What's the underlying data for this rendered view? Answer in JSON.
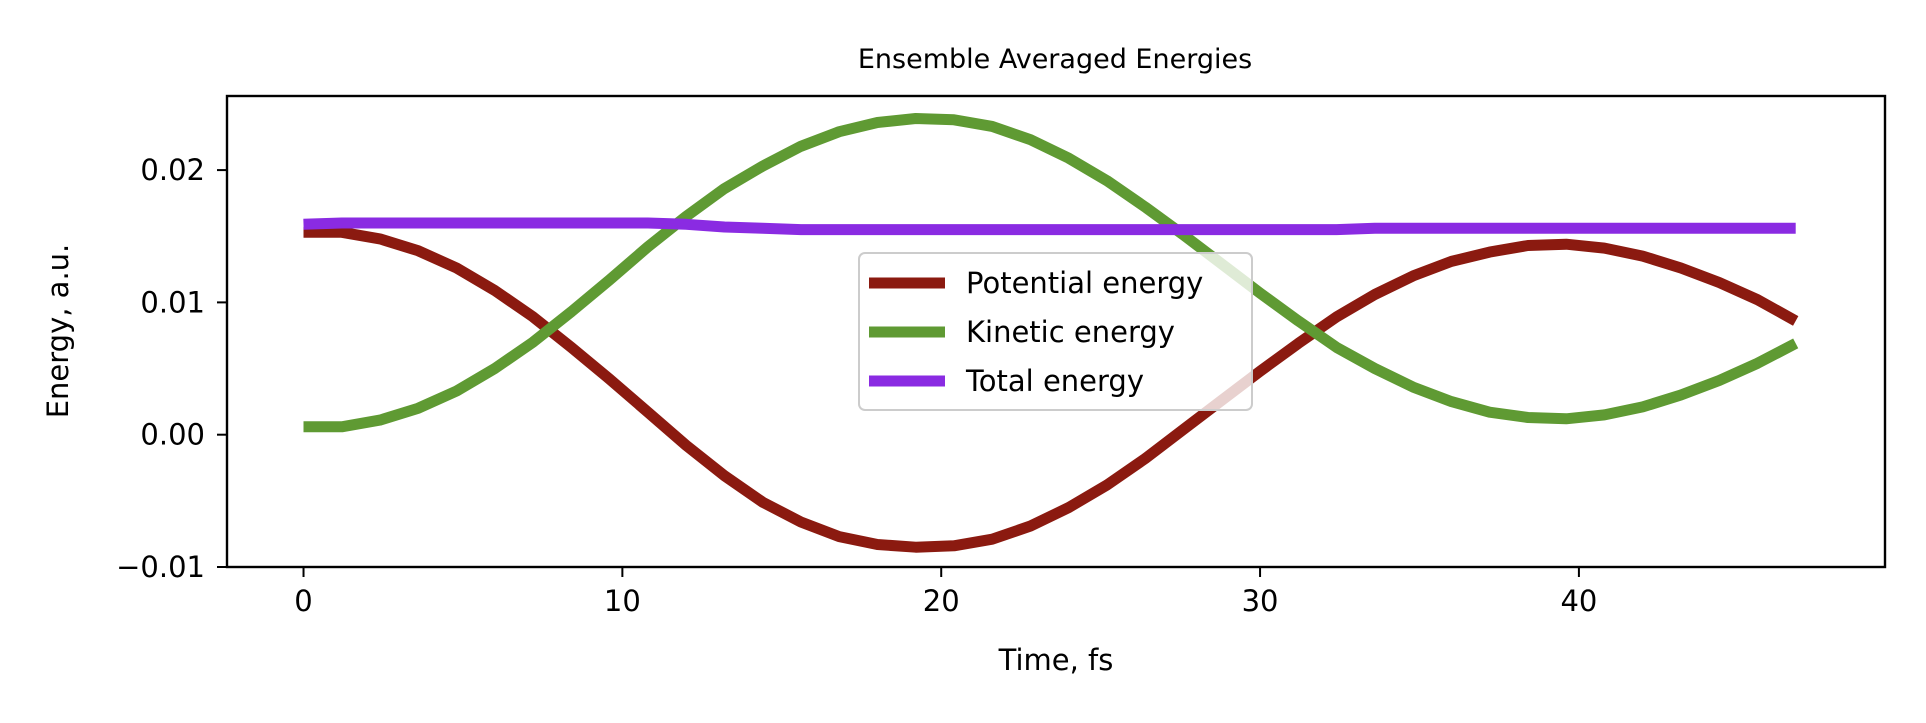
{
  "chart_data": {
    "type": "line",
    "title": "Ensemble Averaged Energies",
    "xlabel": "Time, fs",
    "ylabel": "Energy, a.u.",
    "xlim": [
      -2.4,
      49.6
    ],
    "ylim": [
      -0.01,
      0.0256
    ],
    "xticks": [
      0,
      10,
      20,
      30,
      40
    ],
    "xtick_labels": [
      "0",
      "10",
      "20",
      "30",
      "40"
    ],
    "yticks": [
      -0.01,
      0.0,
      0.01,
      0.02
    ],
    "ytick_labels": [
      "−0.01",
      "0.00",
      "0.01",
      "0.02"
    ],
    "grid": false,
    "legend_position": "center",
    "x": [
      0,
      1.2,
      2.4,
      3.6,
      4.8,
      6.0,
      7.2,
      8.4,
      9.6,
      10.8,
      12.0,
      13.2,
      14.4,
      15.6,
      16.8,
      18.0,
      19.2,
      20.4,
      21.6,
      22.8,
      24.0,
      25.2,
      26.4,
      27.6,
      28.8,
      30.0,
      31.2,
      32.4,
      33.6,
      34.8,
      36.0,
      37.2,
      38.4,
      39.6,
      40.8,
      42.0,
      43.2,
      44.4,
      45.6,
      46.8
    ],
    "series": [
      {
        "name": "Potential energy",
        "color": "#8b1a10",
        "values": [
          0.0153,
          0.0153,
          0.0148,
          0.0139,
          0.0126,
          0.0109,
          0.0089,
          0.0066,
          0.0042,
          0.0017,
          -0.0008,
          -0.0031,
          -0.0051,
          -0.0066,
          -0.0077,
          -0.0083,
          -0.0085,
          -0.0084,
          -0.0079,
          -0.0069,
          -0.0055,
          -0.0038,
          -0.0018,
          0.0004,
          0.0026,
          0.0048,
          0.0069,
          0.0089,
          0.0106,
          0.012,
          0.0131,
          0.0138,
          0.0143,
          0.0144,
          0.0141,
          0.0135,
          0.0126,
          0.0115,
          0.0102,
          0.0086
        ]
      },
      {
        "name": "Kinetic energy",
        "color": "#5f9a33",
        "values": [
          0.0006,
          0.0006,
          0.0011,
          0.002,
          0.0033,
          0.005,
          0.007,
          0.0093,
          0.0117,
          0.0142,
          0.0165,
          0.0186,
          0.0203,
          0.0218,
          0.0229,
          0.0236,
          0.0239,
          0.0238,
          0.0233,
          0.0223,
          0.0209,
          0.0192,
          0.0172,
          0.0151,
          0.0129,
          0.0107,
          0.0086,
          0.0066,
          0.005,
          0.0036,
          0.0025,
          0.0017,
          0.0013,
          0.0012,
          0.0015,
          0.0021,
          0.003,
          0.0041,
          0.0054,
          0.0069
        ]
      },
      {
        "name": "Total energy",
        "color": "#8a2be2",
        "values": [
          0.0159,
          0.016,
          0.016,
          0.016,
          0.016,
          0.016,
          0.016,
          0.016,
          0.016,
          0.016,
          0.0159,
          0.0157,
          0.0156,
          0.0155,
          0.0155,
          0.0155,
          0.0155,
          0.0155,
          0.0155,
          0.0155,
          0.0155,
          0.0155,
          0.0155,
          0.0155,
          0.0155,
          0.0155,
          0.0155,
          0.0155,
          0.0156,
          0.0156,
          0.0156,
          0.0156,
          0.0156,
          0.0156,
          0.0156,
          0.0156,
          0.0156,
          0.0156,
          0.0156,
          0.0156
        ]
      }
    ]
  }
}
